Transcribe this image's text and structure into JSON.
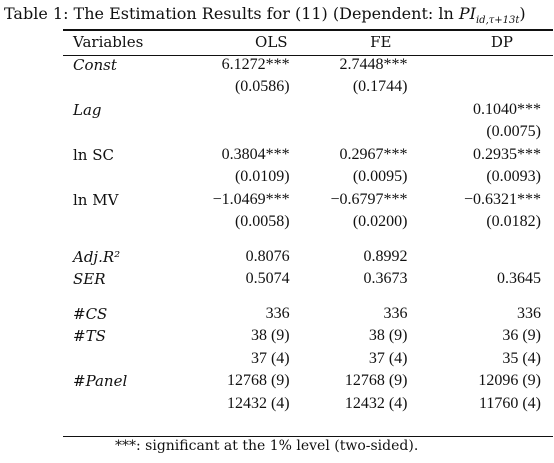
{
  "caption": {
    "prefix": "Table 1: The Estimation Results for (11) (Dependent: ln ",
    "var": "PI",
    "sub": "id,τ+13t",
    "suffix": ")"
  },
  "header": {
    "variables": "Variables",
    "col1": "OLS",
    "col2": "FE",
    "col3": "DP"
  },
  "rows": [
    {
      "label": "Const",
      "italic": true,
      "c1": "6.1272***",
      "c2": "2.7448***",
      "c3": ""
    },
    {
      "label": "",
      "italic": false,
      "c1": "(0.0586)",
      "c2": "(0.1744)",
      "c3": ""
    },
    {
      "label": "Lag",
      "italic": true,
      "c1": "",
      "c2": "",
      "c3": "0.1040***"
    },
    {
      "label": "",
      "italic": false,
      "c1": "",
      "c2": "",
      "c3": "(0.0075)"
    },
    {
      "label": "ln SC",
      "italic": false,
      "c1": "0.3804***",
      "c2": "0.2967***",
      "c3": "0.2935***"
    },
    {
      "label": "",
      "italic": false,
      "c1": "(0.0109)",
      "c2": "(0.0095)",
      "c3": "(0.0093)"
    },
    {
      "label": "ln MV",
      "italic": false,
      "c1": "−1.0469***",
      "c2": "−0.6797***",
      "c3": "−0.6321***"
    },
    {
      "label": "",
      "italic": false,
      "c1": "(0.0058)",
      "c2": "(0.0200)",
      "c3": "(0.0182)"
    },
    {
      "spacer": true
    },
    {
      "label": "Adj.R²",
      "italic": true,
      "c1": "0.8076",
      "c2": "0.8992",
      "c3": ""
    },
    {
      "label": "SER",
      "italic": true,
      "c1": "0.5074",
      "c2": "0.3673",
      "c3": "0.3645"
    },
    {
      "spacer": true
    },
    {
      "label": "#CS",
      "italic": true,
      "c1": "336",
      "c2": "336",
      "c3": "336"
    },
    {
      "label": "#TS",
      "italic": true,
      "c1": "38 (9)",
      "c2": "38 (9)",
      "c3": "36 (9)"
    },
    {
      "label": "",
      "italic": false,
      "c1": "37 (4)",
      "c2": "37 (4)",
      "c3": "35 (4)"
    },
    {
      "label": "#Panel",
      "italic": true,
      "c1": "12768 (9)",
      "c2": "12768 (9)",
      "c3": "12096 (9)"
    },
    {
      "label": "",
      "italic": false,
      "c1": "12432 (4)",
      "c2": "12432 (4)",
      "c3": "11760 (4)"
    }
  ],
  "footnote": "***: significant at the 1% level (two-sided)."
}
